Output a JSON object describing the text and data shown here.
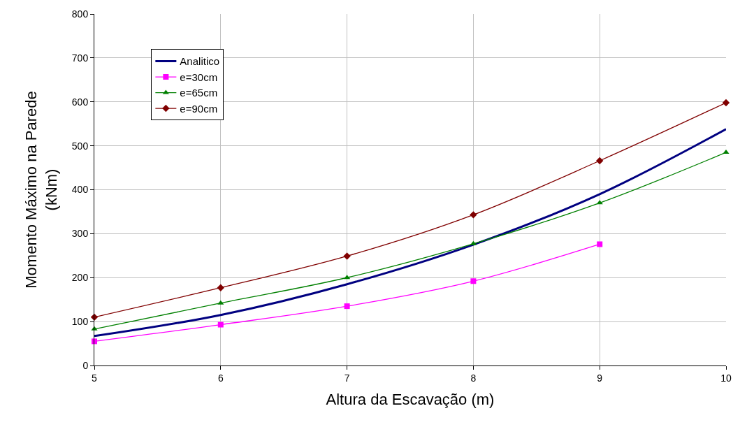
{
  "chart_data": {
    "type": "line",
    "xlabel": "Altura da Escavação (m)",
    "ylabel": "Momento Máximo na Parede (kNm)",
    "x": [
      5,
      6,
      7,
      8,
      9,
      10
    ],
    "series": [
      {
        "name": "Analitico",
        "color": "#000080",
        "values": [
          67,
          115,
          185,
          275,
          390,
          538
        ],
        "marker": "none"
      },
      {
        "name": "e=30cm",
        "color": "#ff00ff",
        "values": [
          55,
          93,
          135,
          192,
          276,
          null
        ],
        "marker": "square"
      },
      {
        "name": "e=65cm",
        "color": "#008000",
        "values": [
          83,
          142,
          200,
          277,
          370,
          485
        ],
        "marker": "triangle"
      },
      {
        "name": "e=90cm",
        "color": "#800000",
        "values": [
          110,
          177,
          249,
          343,
          466,
          598
        ],
        "marker": "diamond"
      }
    ],
    "xlim": [
      5,
      10
    ],
    "xticks": [
      5,
      6,
      7,
      8,
      9,
      10
    ],
    "ylim": [
      0,
      800
    ],
    "yticks": [
      0,
      100,
      200,
      300,
      400,
      500,
      600,
      700,
      800
    ],
    "grid": true,
    "legend": "top left",
    "line_style": "solid"
  }
}
